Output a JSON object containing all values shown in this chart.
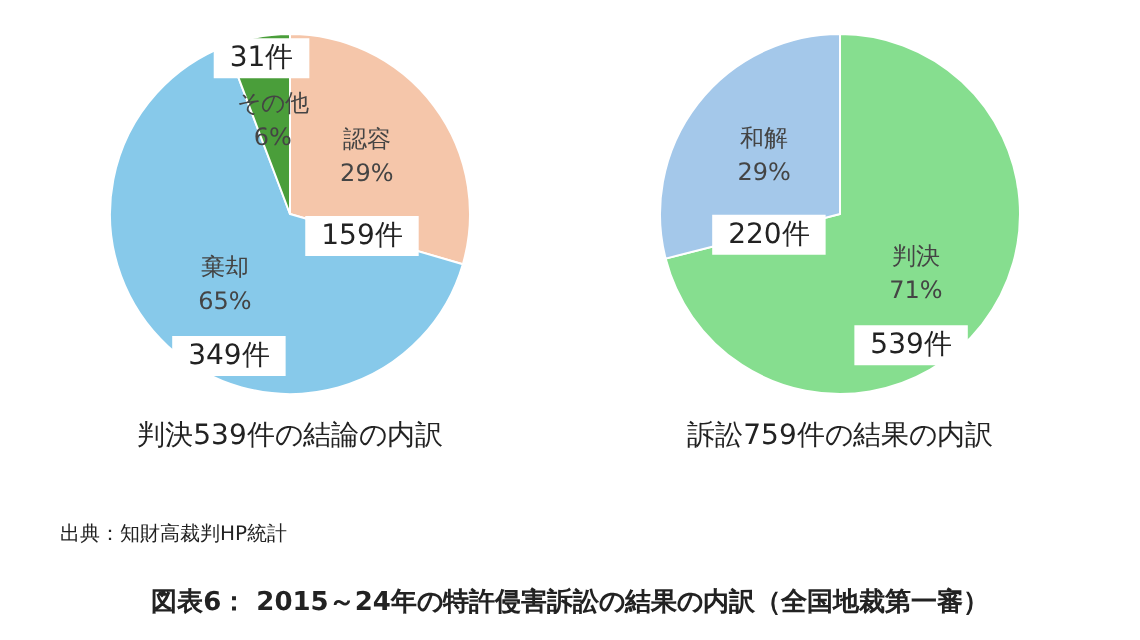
{
  "chart_data": [
    {
      "type": "pie",
      "title": "判決539件の結論の内訳",
      "categories": [
        "認容",
        "棄却",
        "その他"
      ],
      "values": [
        159,
        349,
        31
      ],
      "colors": [
        "#f5c6aa",
        "#87c9ea",
        "#4a9e3a"
      ],
      "value_labels": [
        "159件",
        "349件",
        "31件"
      ],
      "legend": false,
      "annotations": [
        {
          "text": "29%",
          "x": "認容"
        },
        {
          "text": "65%",
          "x": "棄却"
        },
        {
          "text": "6%",
          "x": "その他"
        },
        "出典：知財高裁判HP統計"
      ]
    },
    {
      "type": "pie",
      "title": "訴訟759件の結果の内訳",
      "categories": [
        "判決",
        "和解"
      ],
      "values": [
        539,
        220
      ],
      "colors": [
        "#86de8f",
        "#a4c8ea"
      ],
      "value_labels": [
        "539件",
        "220件"
      ],
      "legend": false,
      "annotations": [
        {
          "text": "71%",
          "x": "判決"
        },
        {
          "text": "29%",
          "x": "和解"
        },
        "図表6：  2015～24年の特許侵害訴訟の結果の内訳（全国地裁第一審）"
      ]
    }
  ]
}
